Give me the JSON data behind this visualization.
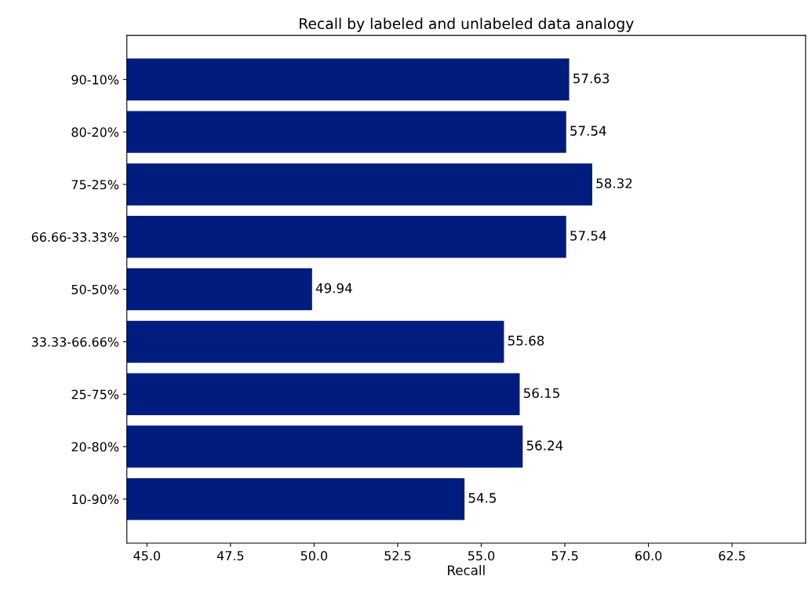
{
  "chart_data": {
    "type": "bar",
    "orientation": "horizontal",
    "title": "Recall by labeled and unlabeled data analogy",
    "xlabel": "Recall",
    "categories": [
      "90-10%",
      "80-20%",
      "75-25%",
      "66.66-33.33%",
      "50-50%",
      "33.33-66.66%",
      "25-75%",
      "20-80%",
      "10-90%"
    ],
    "values": [
      57.63,
      57.54,
      58.32,
      57.54,
      49.94,
      55.68,
      56.15,
      56.24,
      54.5
    ],
    "color": "#001c7f",
    "data_labels": true,
    "xlim": [
      44.4,
      64.7
    ],
    "xticks": [
      {
        "value": 45,
        "label": "45.0"
      },
      {
        "value": 47.5,
        "label": "47.5"
      },
      {
        "value": 50,
        "label": "50.0"
      },
      {
        "value": 52.5,
        "label": "52.5"
      },
      {
        "value": 55,
        "label": "55.0"
      },
      {
        "value": 57.5,
        "label": "57.5"
      },
      {
        "value": 60,
        "label": "60.0"
      },
      {
        "value": 62.5,
        "label": "62.5"
      }
    ],
    "grid": false,
    "legend": false
  }
}
